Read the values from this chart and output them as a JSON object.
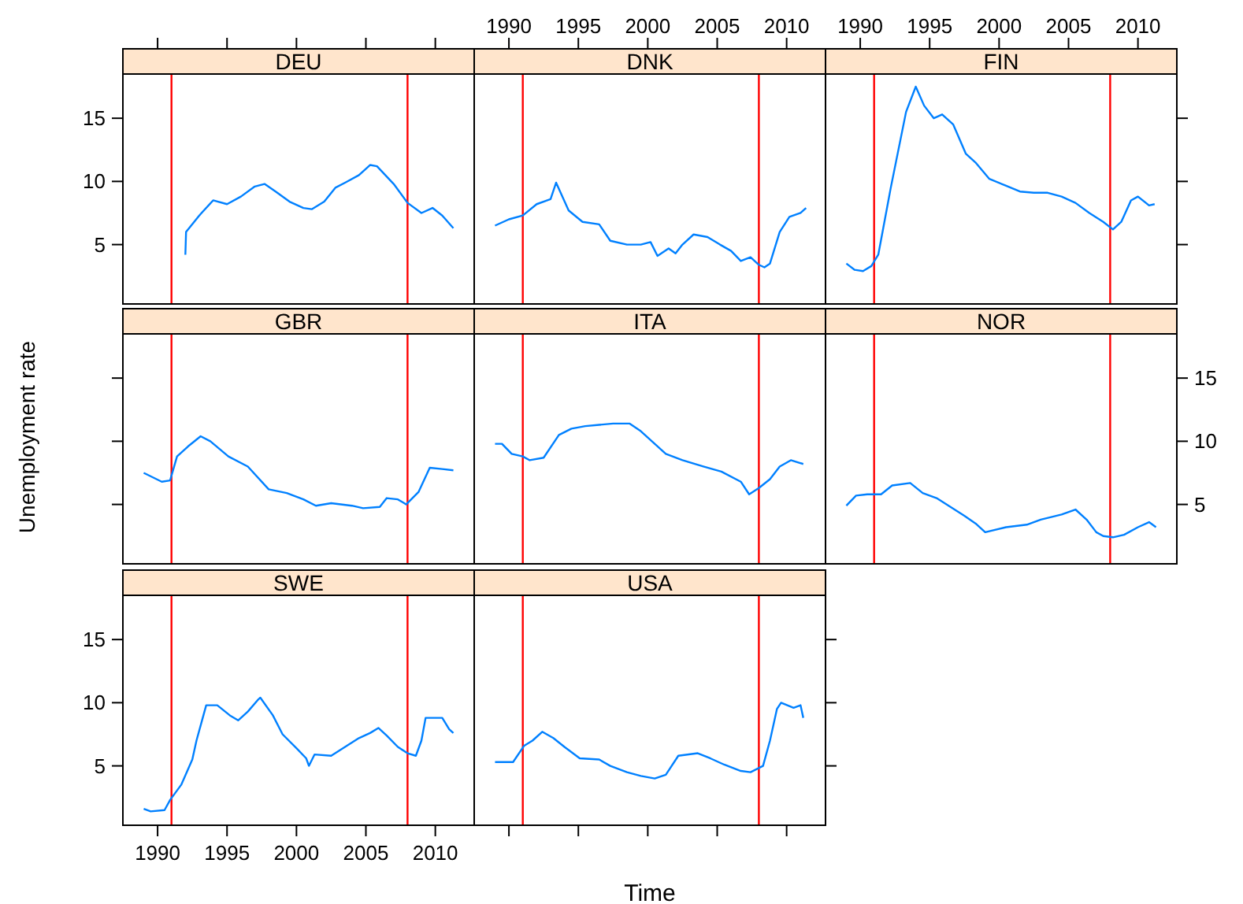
{
  "chart_data": [
    {
      "type": "line",
      "title": "DEU",
      "tick_labels": "y",
      "xlim": [
        1987.5,
        2012.8
      ],
      "ylim": [
        0.3,
        18.5
      ],
      "xticks": [
        1990,
        1995,
        2000,
        2005,
        2010
      ],
      "yticks": [
        5,
        10,
        15
      ],
      "ref_lines": [
        {
          "axis": "x",
          "value": 1991,
          "color": "#ff0000"
        },
        {
          "axis": "x",
          "value": 2008,
          "color": "#ff0000"
        }
      ],
      "series": [
        {
          "color": "#0080ff",
          "x": [
            1992.0,
            1992.05,
            1993.0,
            1994.0,
            1995.0,
            1996.0,
            1997.0,
            1997.7,
            1998.5,
            1999.5,
            2000.5,
            2001.1,
            2002.0,
            2002.8,
            2003.5,
            2004.5,
            2005.3,
            2005.8,
            2007.0,
            2008.0,
            2009.0,
            2009.8,
            2010.5,
            2011.3
          ],
          "values": [
            4.2,
            6.0,
            7.3,
            8.5,
            8.2,
            8.8,
            9.6,
            9.8,
            9.2,
            8.4,
            7.9,
            7.8,
            8.4,
            9.5,
            9.9,
            10.5,
            11.3,
            11.2,
            9.8,
            8.3,
            7.5,
            7.9,
            7.3,
            6.3
          ]
        }
      ]
    },
    {
      "type": "line",
      "title": "DNK",
      "tick_labels": "x",
      "xlim": [
        1987.5,
        2012.8
      ],
      "ylim": [
        0.3,
        18.5
      ],
      "xticks": [
        1990,
        1995,
        2000,
        2005,
        2010
      ],
      "yticks": [
        5,
        10,
        15
      ],
      "ref_lines": [
        {
          "axis": "x",
          "value": 1991,
          "color": "#ff0000"
        },
        {
          "axis": "x",
          "value": 2008,
          "color": "#ff0000"
        }
      ],
      "series": [
        {
          "color": "#0080ff",
          "x": [
            1989.0,
            1990.0,
            1991.0,
            1992.0,
            1993.0,
            1993.4,
            1994.3,
            1995.3,
            1996.5,
            1997.3,
            1998.5,
            1999.5,
            2000.2,
            2000.7,
            2001.5,
            2002.0,
            2002.5,
            2003.3,
            2004.3,
            2005.2,
            2006.0,
            2006.7,
            2007.4,
            2008.0,
            2008.4,
            2008.8,
            2009.5,
            2010.2,
            2011.0,
            2011.4
          ],
          "values": [
            6.5,
            7.0,
            7.3,
            8.2,
            8.6,
            9.9,
            7.7,
            6.8,
            6.6,
            5.3,
            5.0,
            5.0,
            5.2,
            4.1,
            4.7,
            4.3,
            5.0,
            5.8,
            5.6,
            5.0,
            4.5,
            3.7,
            4.0,
            3.4,
            3.2,
            3.5,
            6.0,
            7.2,
            7.5,
            7.9
          ]
        }
      ]
    },
    {
      "type": "line",
      "title": "FIN",
      "tick_labels": "x",
      "xlim": [
        1987.5,
        2012.8
      ],
      "ylim": [
        0.3,
        18.5
      ],
      "xticks": [
        1990,
        1995,
        2000,
        2005,
        2010
      ],
      "yticks": [
        5,
        10,
        15
      ],
      "ref_lines": [
        {
          "axis": "x",
          "value": 1991,
          "color": "#ff0000"
        },
        {
          "axis": "x",
          "value": 2008,
          "color": "#ff0000"
        }
      ],
      "series": [
        {
          "color": "#0080ff",
          "x": [
            1989.0,
            1989.6,
            1990.2,
            1990.8,
            1991.3,
            1992.2,
            1993.3,
            1994.0,
            1994.6,
            1995.3,
            1995.9,
            1996.7,
            1997.6,
            1998.3,
            1999.3,
            2000.4,
            2001.5,
            2002.5,
            2003.5,
            2004.5,
            2005.5,
            2006.5,
            2007.5,
            2008.2,
            2008.8,
            2009.5,
            2010.0,
            2010.8,
            2011.2
          ],
          "values": [
            3.5,
            3.0,
            2.9,
            3.3,
            4.2,
            9.5,
            15.5,
            17.5,
            16.0,
            15.0,
            15.3,
            14.5,
            12.2,
            11.5,
            10.2,
            9.7,
            9.2,
            9.1,
            9.1,
            8.8,
            8.3,
            7.5,
            6.8,
            6.2,
            6.8,
            8.5,
            8.8,
            8.1,
            8.2
          ]
        }
      ]
    },
    {
      "type": "line",
      "title": "GBR",
      "ylabel": "Unemployment rate",
      "tick_labels": false,
      "xlim": [
        1987.5,
        2012.8
      ],
      "ylim": [
        0.3,
        18.5
      ],
      "xticks": [
        1990,
        1995,
        2000,
        2005,
        2010
      ],
      "yticks": [
        5,
        10,
        15
      ],
      "ref_lines": [
        {
          "axis": "x",
          "value": 1991,
          "color": "#ff0000"
        },
        {
          "axis": "x",
          "value": 2008,
          "color": "#ff0000"
        }
      ],
      "series": [
        {
          "color": "#0080ff",
          "x": [
            1989.0,
            1990.3,
            1990.9,
            1991.4,
            1992.2,
            1993.1,
            1993.8,
            1995.1,
            1996.5,
            1998.0,
            1999.3,
            2000.5,
            2001.4,
            2002.5,
            2004.0,
            2004.8,
            2006.0,
            2006.5,
            2007.3,
            2007.9,
            2008.8,
            2009.6,
            2010.5,
            2011.3
          ],
          "values": [
            7.5,
            6.8,
            6.9,
            8.8,
            9.6,
            10.4,
            10.0,
            8.8,
            8.0,
            6.2,
            5.9,
            5.4,
            4.9,
            5.1,
            4.9,
            4.7,
            4.8,
            5.5,
            5.4,
            5.0,
            6.0,
            7.9,
            7.8,
            7.7
          ]
        }
      ]
    },
    {
      "type": "line",
      "title": "ITA",
      "tick_labels": false,
      "xlim": [
        1987.5,
        2012.8
      ],
      "ylim": [
        0.3,
        18.5
      ],
      "xticks": [
        1990,
        1995,
        2000,
        2005,
        2010
      ],
      "yticks": [
        5,
        10,
        15
      ],
      "ref_lines": [
        {
          "axis": "x",
          "value": 1991,
          "color": "#ff0000"
        },
        {
          "axis": "x",
          "value": 2008,
          "color": "#ff0000"
        }
      ],
      "series": [
        {
          "color": "#0080ff",
          "x": [
            1989.0,
            1989.5,
            1990.2,
            1991.0,
            1991.5,
            1992.5,
            1993.6,
            1994.5,
            1995.5,
            1996.5,
            1997.5,
            1998.7,
            1999.5,
            2000.0,
            2001.3,
            2002.5,
            2004.0,
            2005.3,
            2006.7,
            2007.3,
            2008.0,
            2008.8,
            2009.5,
            2010.3,
            2011.2
          ],
          "values": [
            9.8,
            9.8,
            9.0,
            8.8,
            8.5,
            8.7,
            10.5,
            11.0,
            11.2,
            11.3,
            11.4,
            11.4,
            10.8,
            10.3,
            9.0,
            8.5,
            8.0,
            7.6,
            6.8,
            5.8,
            6.3,
            7.0,
            8.0,
            8.5,
            8.2
          ]
        }
      ]
    },
    {
      "type": "line",
      "title": "NOR",
      "tick_labels": "y",
      "xlim": [
        1987.5,
        2012.8
      ],
      "ylim": [
        0.3,
        18.5
      ],
      "xticks": [
        1990,
        1995,
        2000,
        2005,
        2010
      ],
      "yticks": [
        5,
        10,
        15
      ],
      "ref_lines": [
        {
          "axis": "x",
          "value": 1991,
          "color": "#ff0000"
        },
        {
          "axis": "x",
          "value": 2008,
          "color": "#ff0000"
        }
      ],
      "series": [
        {
          "color": "#0080ff",
          "x": [
            1989.0,
            1989.7,
            1990.5,
            1991.5,
            1992.3,
            1993.6,
            1994.5,
            1995.5,
            1996.5,
            1997.5,
            1998.3,
            1999.0,
            2000.5,
            2002.0,
            2003.0,
            2004.5,
            2005.5,
            2006.3,
            2007.0,
            2007.5,
            2008.2,
            2009.0,
            2010.0,
            2010.8,
            2011.3
          ],
          "values": [
            4.9,
            5.7,
            5.8,
            5.8,
            6.5,
            6.7,
            5.9,
            5.5,
            4.8,
            4.1,
            3.5,
            2.8,
            3.2,
            3.4,
            3.8,
            4.2,
            4.6,
            3.8,
            2.8,
            2.5,
            2.4,
            2.6,
            3.2,
            3.6,
            3.2
          ]
        }
      ]
    },
    {
      "type": "line",
      "title": "SWE",
      "xlim": [
        1987.5,
        2012.8
      ],
      "ylim": [
        0.3,
        18.5
      ],
      "xticks": [
        1990,
        1995,
        2000,
        2005,
        2010
      ],
      "yticks": [
        5,
        10,
        15
      ],
      "ref_lines": [
        {
          "axis": "x",
          "value": 1991,
          "color": "#ff0000"
        },
        {
          "axis": "x",
          "value": 2008,
          "color": "#ff0000"
        }
      ],
      "series": [
        {
          "color": "#0080ff",
          "x": [
            1989.0,
            1989.5,
            1990.5,
            1990.9,
            1991.7,
            1992.5,
            1992.8,
            1993.5,
            1994.3,
            1995.2,
            1995.8,
            1996.5,
            1997.2,
            1997.4,
            1998.3,
            1999.0,
            2000.0,
            2000.7,
            2000.9,
            2001.3,
            2002.5,
            2003.5,
            2004.5,
            2005.3,
            2005.9,
            2006.5,
            2007.3,
            2008.0,
            2008.6,
            2009.0,
            2009.3,
            2010.5,
            2011.0,
            2011.3
          ],
          "values": [
            1.6,
            1.4,
            1.5,
            2.3,
            3.5,
            5.5,
            7.0,
            9.8,
            9.8,
            9.0,
            8.6,
            9.3,
            10.2,
            10.4,
            9.0,
            7.5,
            6.4,
            5.6,
            5.0,
            5.9,
            5.8,
            6.5,
            7.2,
            7.6,
            8.0,
            7.4,
            6.5,
            6.0,
            5.8,
            7.0,
            8.8,
            8.8,
            7.9,
            7.6
          ]
        }
      ]
    },
    {
      "type": "line",
      "title": "USA",
      "xlabel": "Time",
      "tick_labels": false,
      "xlim": [
        1987.5,
        2012.8
      ],
      "ylim": [
        0.3,
        18.5
      ],
      "xticks": [
        1990,
        1995,
        2000,
        2005,
        2010
      ],
      "yticks": [
        5,
        10,
        15
      ],
      "ref_lines": [
        {
          "axis": "x",
          "value": 1991,
          "color": "#ff0000"
        },
        {
          "axis": "x",
          "value": 2008,
          "color": "#ff0000"
        }
      ],
      "series": [
        {
          "color": "#0080ff",
          "x": [
            1989.0,
            1990.3,
            1991.1,
            1991.7,
            1992.4,
            1993.2,
            1994.0,
            1995.1,
            1996.5,
            1997.3,
            1998.5,
            1999.5,
            2000.5,
            2001.3,
            2002.2,
            2003.6,
            2004.5,
            2005.5,
            2006.7,
            2007.4,
            2008.3,
            2008.8,
            2009.3,
            2009.6,
            2010.5,
            2011.0,
            2011.2
          ],
          "values": [
            5.3,
            5.3,
            6.6,
            7.0,
            7.7,
            7.2,
            6.5,
            5.6,
            5.5,
            5.0,
            4.5,
            4.2,
            4.0,
            4.3,
            5.8,
            6.0,
            5.6,
            5.1,
            4.6,
            4.5,
            5.0,
            7.0,
            9.5,
            10.0,
            9.6,
            9.8,
            8.8
          ]
        }
      ]
    }
  ]
}
